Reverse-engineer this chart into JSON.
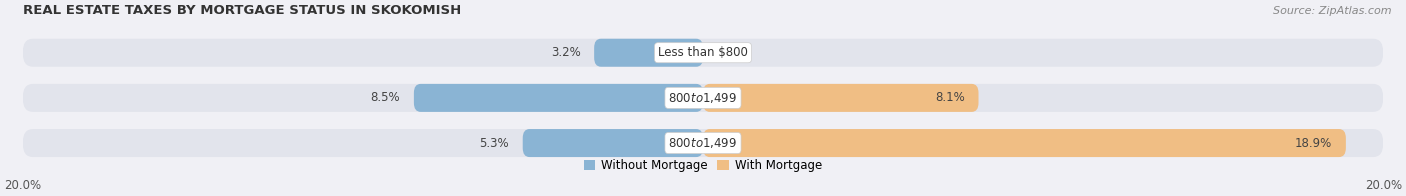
{
  "title": "REAL ESTATE TAXES BY MORTGAGE STATUS IN SKOKOMISH",
  "source": "Source: ZipAtlas.com",
  "rows": [
    {
      "label": "Less than $800",
      "without_mortgage": 3.2,
      "with_mortgage": 0.0
    },
    {
      "label": "$800 to $1,499",
      "without_mortgage": 8.5,
      "with_mortgage": 8.1
    },
    {
      "label": "$800 to $1,499",
      "without_mortgage": 5.3,
      "with_mortgage": 18.9
    }
  ],
  "xlim": 20.0,
  "color_without": "#8ab4d4",
  "color_with": "#f0be84",
  "color_bg_bar": "#e2e4ec",
  "bar_height": 0.62,
  "bar_gap": 0.12,
  "title_fontsize": 9.5,
  "label_fontsize": 8.5,
  "tick_fontsize": 8.5,
  "legend_fontsize": 8.5,
  "source_fontsize": 8.0,
  "bg_color": "#f0f0f5"
}
